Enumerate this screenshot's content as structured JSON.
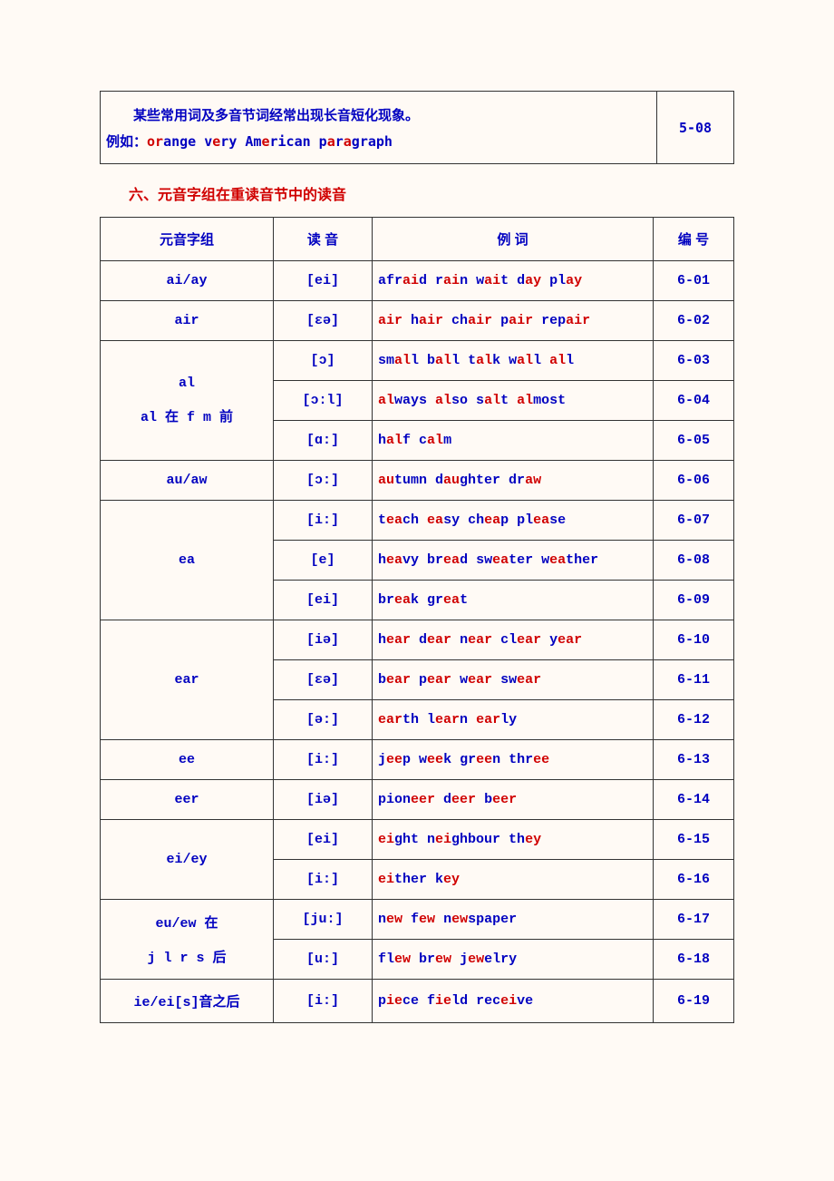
{
  "top_note": {
    "line1_cn": "某些常用词及多音节词经常出现长音短化现象。",
    "example_prefix": "例如：",
    "example_html": "<span class='hl'>or</span>ange v<span class='hl'>e</span>ry Am<span class='hl'>e</span>rican p<span class='hl'>a</span>r<span class='hl'>a</span>graph",
    "code": "5-08"
  },
  "section_title": "六、元音字组在重读音节中的读音",
  "headers": {
    "c1": "元音字组",
    "c2": "读 音",
    "c3": "例 词",
    "c4": "编 号"
  },
  "rows": [
    {
      "group": "ai/ay",
      "rowspan": 1,
      "sound": "[ei]",
      "examples": "afr<span class='hl'>ai</span>d r<span class='hl'>ai</span>n w<span class='hl'>ai</span>t d<span class='hl'>ay</span> pl<span class='hl'>ay</span>",
      "code": "6-01"
    },
    {
      "group": "air",
      "rowspan": 1,
      "sound": "[εə]",
      "examples": "<span class='hl'>air</span> h<span class='hl'>air</span> ch<span class='hl'>air</span> p<span class='hl'>air</span> rep<span class='hl'>air</span>",
      "code": "6-02"
    },
    {
      "group": "al<br><br>al 在 f m 前",
      "rowspan": 3,
      "sound": "[ɔ]",
      "examples": "sm<span class='hl'>al</span>l b<span class='hl'>al</span>l t<span class='hl'>al</span>k w<span class='hl'>al</span>l <span class='hl'>al</span>l",
      "code": "6-03"
    },
    {
      "sound": "[ɔ:l]",
      "examples": "<span class='hl'>al</span>ways <span class='hl'>al</span>so s<span class='hl'>al</span>t <span class='hl'>al</span>most",
      "code": "6-04"
    },
    {
      "sound": "[ɑ:]",
      "examples": "h<span class='hl'>al</span>f c<span class='hl'>al</span>m",
      "code": "6-05"
    },
    {
      "group": "au/aw",
      "rowspan": 1,
      "sound": "[ɔ:]",
      "examples": "<span class='hl'>au</span>tumn d<span class='hl'>au</span>ghter dr<span class='hl'>aw</span>",
      "code": "6-06"
    },
    {
      "group": "ea",
      "rowspan": 3,
      "sound": "[i:]",
      "examples": "t<span class='hl'>ea</span>ch <span class='hl'>ea</span>sy ch<span class='hl'>ea</span>p pl<span class='hl'>ea</span>se",
      "code": "6-07"
    },
    {
      "sound": "[e]",
      "examples": "h<span class='hl'>ea</span>vy br<span class='hl'>ea</span>d sw<span class='hl'>ea</span>ter w<span class='hl'>ea</span>ther",
      "code": "6-08"
    },
    {
      "sound": "[ei]",
      "examples": "br<span class='hl'>ea</span>k gr<span class='hl'>ea</span>t",
      "code": "6-09"
    },
    {
      "group": "ear",
      "rowspan": 3,
      "sound": "[iə]",
      "examples": "h<span class='hl'>ear</span> d<span class='hl'>ear</span> n<span class='hl'>ear</span> cl<span class='hl'>ear</span> y<span class='hl'>ear</span>",
      "code": "6-10"
    },
    {
      "sound": "[εə]",
      "examples": "b<span class='hl'>ear</span> p<span class='hl'>ear</span> w<span class='hl'>ear</span> sw<span class='hl'>ear</span>",
      "code": "6-11"
    },
    {
      "sound": "[ə:]",
      "examples": "<span class='hl'>ear</span>th l<span class='hl'>ear</span>n <span class='hl'>ear</span>ly",
      "code": "6-12"
    },
    {
      "group": "ee",
      "rowspan": 1,
      "sound": "[i:]",
      "examples": "j<span class='hl'>ee</span>p w<span class='hl'>ee</span>k gr<span class='hl'>ee</span>n thr<span class='hl'>ee</span>",
      "code": "6-13"
    },
    {
      "group": "eer",
      "rowspan": 1,
      "sound": "[iə]",
      "examples": "pion<span class='hl'>eer</span> d<span class='hl'>eer</span> b<span class='hl'>eer</span>",
      "code": "6-14"
    },
    {
      "group": "ei/ey",
      "rowspan": 2,
      "sound": "[ei]",
      "examples": "<span class='hl'>ei</span>ght n<span class='hl'>ei</span>ghbour th<span class='hl'>ey</span>",
      "code": "6-15"
    },
    {
      "sound": "[i:]",
      "examples": "<span class='hl'>ei</span>ther k<span class='hl'>ey</span>",
      "code": "6-16"
    },
    {
      "group": "eu/ew 在<br><br>j l r s 后",
      "rowspan": 2,
      "sound": "[ju:]",
      "examples": "n<span class='hl'>ew</span> f<span class='hl'>ew</span> n<span class='hl'>ew</span>spaper",
      "code": "6-17"
    },
    {
      "sound": "[u:]",
      "examples": "fl<span class='hl'>ew</span> br<span class='hl'>ew</span> j<span class='hl'>ew</span>elry",
      "code": "6-18"
    },
    {
      "group": "ie/ei[s]音之后",
      "rowspan": 1,
      "sound": "[i:]",
      "examples": "p<span class='hl'>ie</span>ce f<span class='hl'>ie</span>ld rec<span class='hl'>ei</span>ve",
      "code": "6-19"
    }
  ]
}
